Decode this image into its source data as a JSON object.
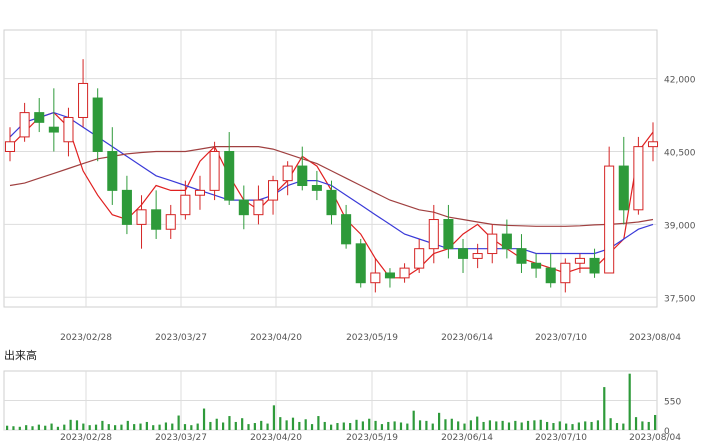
{
  "chart_data": [
    {
      "type": "candlestick",
      "title": "",
      "x_ticks": [
        "2023/02/28",
        "2023/03/27",
        "2023/04/20",
        "2023/05/19",
        "2023/06/14",
        "2023/07/10",
        "2023/08/04"
      ],
      "y_ticks": [
        "42,000",
        "40,500",
        "39,000",
        "37,500"
      ],
      "ylim": [
        37300,
        43000
      ],
      "grid": true,
      "colors": {
        "up": "#d42424",
        "down": "#2e9a3a",
        "ma_short": "#e02020",
        "ma_mid": "#3a3ad8",
        "ma_long": "#a04040"
      },
      "series": [
        {
          "name": "",
          "role": "ma_short",
          "values": [
            40600,
            40900,
            41200,
            41300,
            41000,
            40100,
            39600,
            39200,
            39100,
            39400,
            39800,
            39700,
            39700,
            40300,
            40600,
            40000,
            39500,
            39300,
            39600,
            39900,
            40400,
            40200,
            39700,
            39100,
            38800,
            38300,
            37900,
            37900,
            38100,
            38400,
            38500,
            38800,
            39000,
            38700,
            38500,
            38300,
            38200,
            38100,
            38000,
            38100,
            38100,
            38400,
            38700,
            40500,
            40900
          ]
        },
        {
          "name": "",
          "role": "ma_mid",
          "values": [
            40800,
            41100,
            41200,
            41300,
            41200,
            41000,
            40800,
            40600,
            40400,
            40200,
            40000,
            39900,
            39800,
            39700,
            39600,
            39500,
            39500,
            39500,
            39600,
            39800,
            39900,
            39900,
            39800,
            39600,
            39400,
            39200,
            39000,
            38800,
            38700,
            38600,
            38500,
            38500,
            38500,
            38500,
            38500,
            38500,
            38400,
            38400,
            38400,
            38400,
            38400,
            38500,
            38700,
            38900,
            39000
          ]
        },
        {
          "name": "",
          "role": "ma_long",
          "values": [
            39800,
            39850,
            39950,
            40050,
            40150,
            40250,
            40350,
            40400,
            40450,
            40480,
            40500,
            40500,
            40500,
            40550,
            40600,
            40600,
            40600,
            40600,
            40550,
            40450,
            40350,
            40250,
            40100,
            39950,
            39800,
            39650,
            39500,
            39400,
            39300,
            39250,
            39150,
            39100,
            39050,
            39000,
            38980,
            38970,
            38960,
            38960,
            38960,
            38970,
            38990,
            39000,
            39020,
            39050,
            39100
          ]
        }
      ],
      "candles": [
        [
          40500,
          41000,
          40300,
          40700
        ],
        [
          40800,
          41500,
          40700,
          41300
        ],
        [
          41300,
          41600,
          40900,
          41100
        ],
        [
          41000,
          41800,
          40500,
          40900
        ],
        [
          40700,
          41400,
          40400,
          41200
        ],
        [
          41200,
          42400,
          41000,
          41900
        ],
        [
          41600,
          41800,
          40300,
          40500
        ],
        [
          40500,
          41000,
          39400,
          39700
        ],
        [
          39700,
          40000,
          38800,
          39000
        ],
        [
          39000,
          39600,
          38500,
          39300
        ],
        [
          39300,
          39700,
          38700,
          38900
        ],
        [
          38900,
          39400,
          38700,
          39200
        ],
        [
          39200,
          39900,
          39100,
          39600
        ],
        [
          39600,
          40000,
          39300,
          39700
        ],
        [
          39700,
          40700,
          39500,
          40500
        ],
        [
          40500,
          40900,
          39400,
          39500
        ],
        [
          39500,
          39800,
          38900,
          39200
        ],
        [
          39200,
          39800,
          39000,
          39500
        ],
        [
          39500,
          40000,
          39200,
          39900
        ],
        [
          39900,
          40300,
          39600,
          40200
        ],
        [
          40200,
          40600,
          39700,
          39800
        ],
        [
          39800,
          40100,
          39500,
          39700
        ],
        [
          39700,
          39900,
          39000,
          39200
        ],
        [
          39200,
          39400,
          38500,
          38600
        ],
        [
          38600,
          38700,
          37700,
          37800
        ],
        [
          37800,
          38300,
          37600,
          38000
        ],
        [
          38000,
          38100,
          37700,
          37900
        ],
        [
          37900,
          38200,
          37800,
          38100
        ],
        [
          38100,
          38700,
          38000,
          38500
        ],
        [
          38500,
          39400,
          38200,
          39100
        ],
        [
          39100,
          39400,
          38300,
          38500
        ],
        [
          38500,
          38700,
          38000,
          38300
        ],
        [
          38300,
          38600,
          38100,
          38400
        ],
        [
          38400,
          39000,
          38200,
          38800
        ],
        [
          38800,
          39100,
          38300,
          38500
        ],
        [
          38500,
          38800,
          38000,
          38200
        ],
        [
          38200,
          38400,
          37900,
          38100
        ],
        [
          38100,
          38400,
          37700,
          37800
        ],
        [
          37800,
          38300,
          37600,
          38200
        ],
        [
          38200,
          38400,
          38000,
          38300
        ],
        [
          38300,
          38500,
          37900,
          38000
        ],
        [
          38000,
          40600,
          38000,
          40200
        ],
        [
          40200,
          40800,
          39000,
          39300
        ],
        [
          39300,
          40800,
          39200,
          40600
        ],
        [
          40600,
          41100,
          40300,
          40700
        ]
      ]
    },
    {
      "type": "bar",
      "title": "出来高",
      "y_ticks": [
        "550",
        "0"
      ],
      "ylim": [
        0,
        1100
      ],
      "grid": true,
      "values": [
        80,
        70,
        60,
        90,
        70,
        100,
        80,
        120,
        60,
        100,
        190,
        180,
        120,
        90,
        100,
        170,
        110,
        90,
        100,
        170,
        110,
        120,
        150,
        90,
        100,
        140,
        120,
        270,
        110,
        90,
        120,
        400,
        150,
        210,
        140,
        260,
        150,
        220,
        110,
        130,
        170,
        120,
        460,
        240,
        180,
        230,
        150,
        200,
        110,
        260,
        150,
        100,
        130,
        140,
        130,
        190,
        160,
        210,
        170,
        110,
        150,
        160,
        140,
        120,
        360,
        180,
        170,
        120,
        320,
        200,
        210,
        160,
        120,
        180,
        250,
        150,
        180,
        160,
        170,
        140,
        170,
        140,
        170,
        180,
        190,
        150,
        130,
        160,
        120,
        110,
        140,
        160,
        150,
        180,
        800,
        220,
        130,
        120,
        1050,
        240,
        160,
        150,
        280
      ]
    }
  ]
}
